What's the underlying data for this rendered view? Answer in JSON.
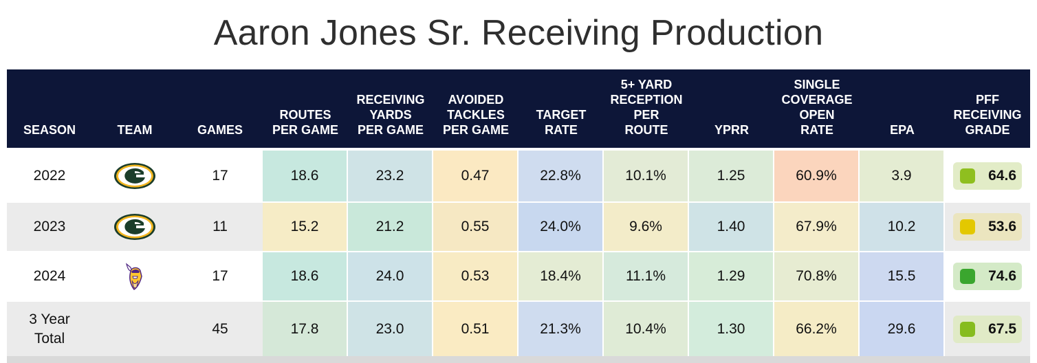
{
  "title": "Aaron Jones Sr. Receiving Production",
  "headers": {
    "season": "SEASON",
    "team": "TEAM",
    "games": "GAMES",
    "routes": "ROUTES\nPER GAME",
    "rec_yards": "RECEIVING\nYARDS\nPER GAME",
    "avoided": "AVOIDED\nTACKLES\nPER GAME",
    "target_rate": "TARGET\nRATE",
    "five_yard": "5+ YARD\nRECEPTION\nPER\nROUTE",
    "yprr": "YPRR",
    "single_cov": "SINGLE\nCOVERAGE\nOPEN\nRATE",
    "epa": "EPA",
    "grade": "PFF\nRECEIVING\nGRADE"
  },
  "rows": [
    {
      "season": "2022",
      "team_logo": "packers-logo",
      "games": "17",
      "stats": [
        {
          "value": "18.6",
          "color": "#c7e8df"
        },
        {
          "value": "23.2",
          "color": "#cfe3e6"
        },
        {
          "value": "0.47",
          "color": "#fbe9c2"
        },
        {
          "value": "22.8%",
          "color": "#cfdcef"
        },
        {
          "value": "10.1%",
          "color": "#e3ebd6"
        },
        {
          "value": "1.25",
          "color": "#dcebd8"
        },
        {
          "value": "60.9%",
          "color": "#fbd5bd"
        },
        {
          "value": "3.9",
          "color": "#e4ecd2"
        }
      ],
      "grade": "64.6",
      "grade_color": "#8fbf1f",
      "grade_bg": "#e2ecc7"
    },
    {
      "season": "2023",
      "team_logo": "packers-logo",
      "games": "11",
      "stats": [
        {
          "value": "15.2",
          "color": "#f6ecc6"
        },
        {
          "value": "21.2",
          "color": "#c9e8da"
        },
        {
          "value": "0.55",
          "color": "#f6e8c3"
        },
        {
          "value": "24.0%",
          "color": "#c8d8ef"
        },
        {
          "value": "9.6%",
          "color": "#f3ecc9"
        },
        {
          "value": "1.40",
          "color": "#cfe3e6"
        },
        {
          "value": "67.9%",
          "color": "#f4ecca"
        },
        {
          "value": "10.2",
          "color": "#cfe1e8"
        }
      ],
      "grade": "53.6",
      "grade_color": "#e3c800",
      "grade_bg": "#ebe5bf"
    },
    {
      "season": "2024",
      "team_logo": "vikings-logo",
      "games": "17",
      "stats": [
        {
          "value": "18.6",
          "color": "#c7e8df"
        },
        {
          "value": "24.0",
          "color": "#cde2e8"
        },
        {
          "value": "0.53",
          "color": "#f8ebc4"
        },
        {
          "value": "18.4%",
          "color": "#e4ecd4"
        },
        {
          "value": "11.1%",
          "color": "#d6eadc"
        },
        {
          "value": "1.29",
          "color": "#d7ecd8"
        },
        {
          "value": "70.8%",
          "color": "#e7ecd2"
        },
        {
          "value": "15.5",
          "color": "#cdd9f0"
        }
      ],
      "grade": "74.6",
      "grade_color": "#3aa62e",
      "grade_bg": "#d4eac7"
    },
    {
      "season": "3 Year\nTotal",
      "team_logo": "",
      "games": "45",
      "stats": [
        {
          "value": "17.8",
          "color": "#d5e8d8"
        },
        {
          "value": "23.0",
          "color": "#cfe3e6"
        },
        {
          "value": "0.51",
          "color": "#faebc3"
        },
        {
          "value": "21.3%",
          "color": "#cfdcef"
        },
        {
          "value": "10.4%",
          "color": "#dfebd6"
        },
        {
          "value": "1.30",
          "color": "#d3ecdc"
        },
        {
          "value": "66.2%",
          "color": "#f5ecc6"
        },
        {
          "value": "29.6",
          "color": "#cad7f1"
        }
      ],
      "grade": "67.5",
      "grade_color": "#86bc1f",
      "grade_bg": "#e0eac6"
    }
  ],
  "colors": {
    "header_bg": "#0d1638",
    "row_shade": "#ebebeb"
  }
}
